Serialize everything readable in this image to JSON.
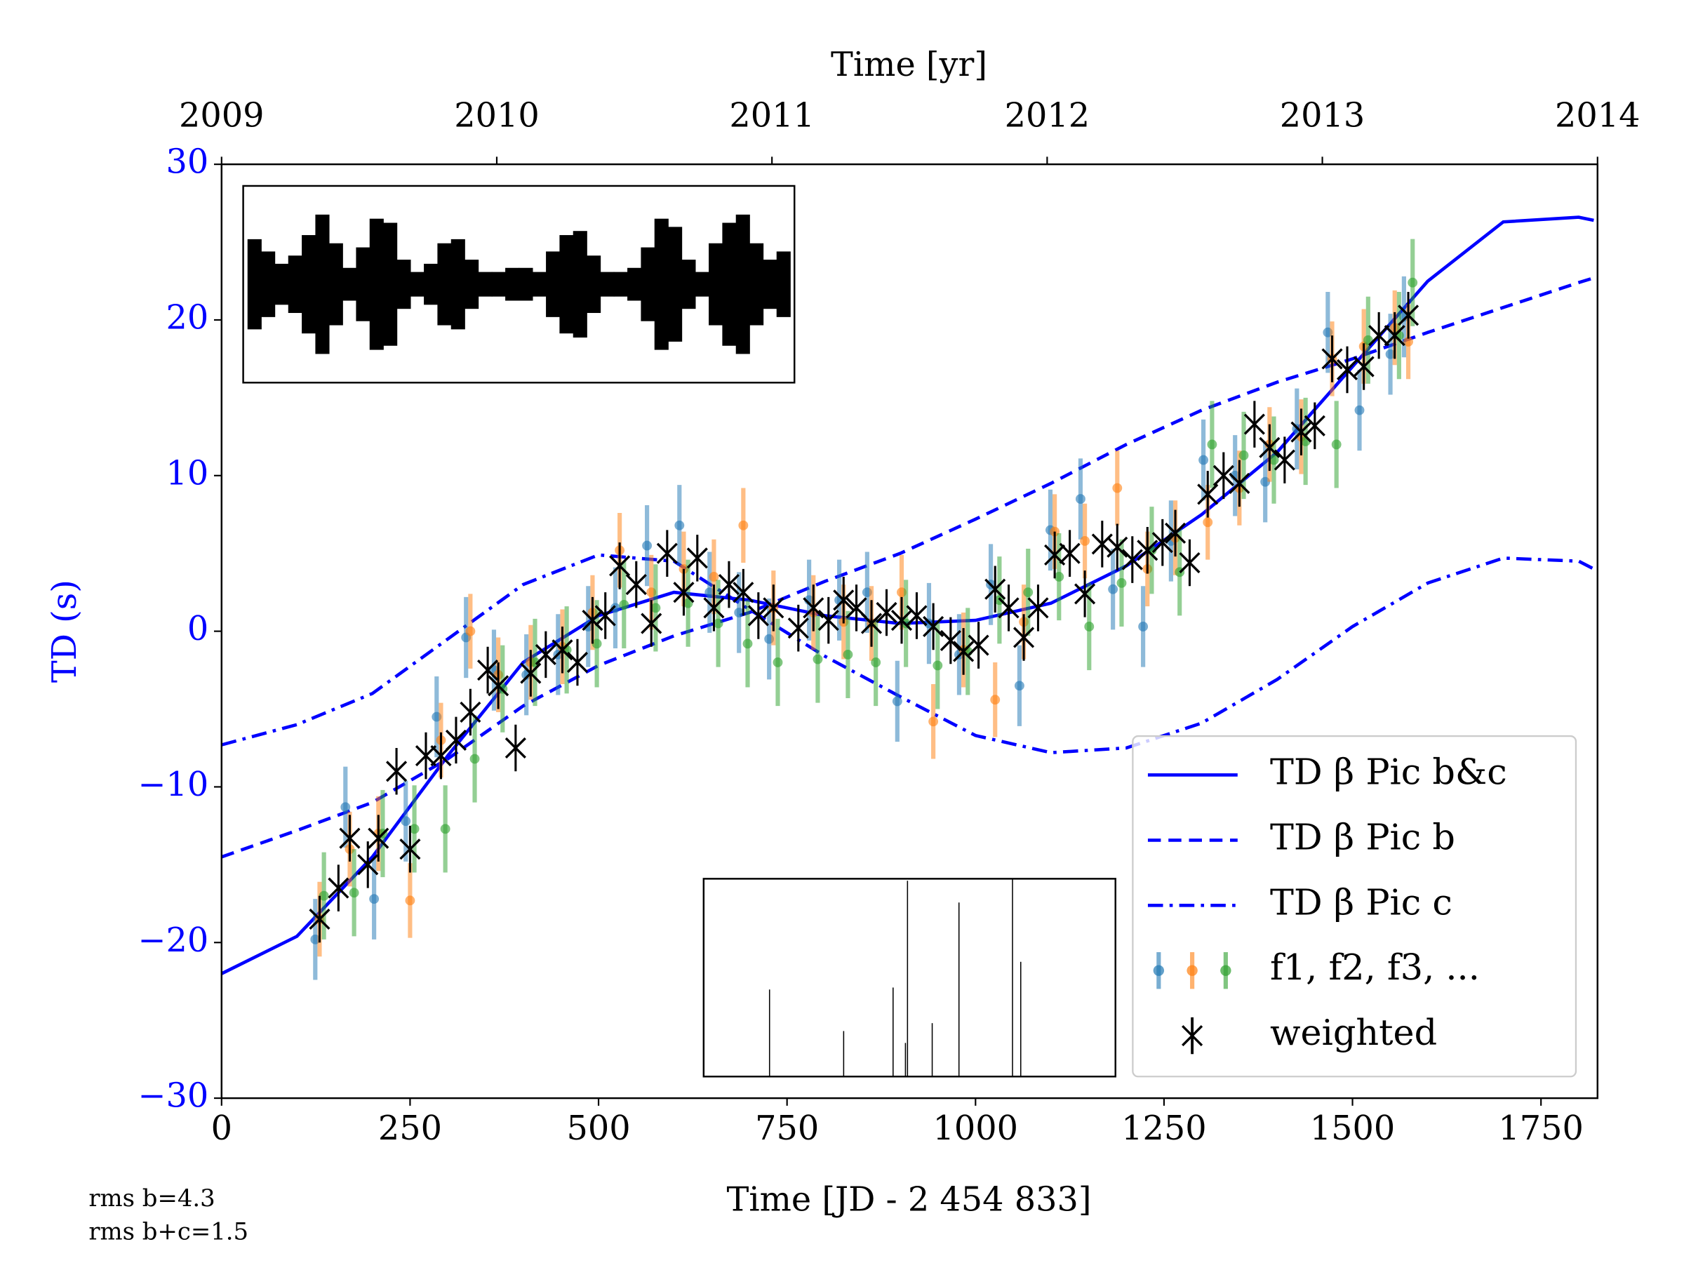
{
  "chart_data": [
    {
      "type": "line",
      "xlabel": "Time [JD - 2 454 833]",
      "ylabel": "TD (s)",
      "x2label": "Time [yr]",
      "xlim": [
        0,
        1825
      ],
      "xticks": [
        0,
        250,
        500,
        750,
        1000,
        1250,
        1500,
        1750
      ],
      "x2lim": [
        2009,
        2014
      ],
      "x2ticks": [
        2009,
        2010,
        2011,
        2012,
        2013,
        2014
      ],
      "ylim": [
        -30,
        30
      ],
      "yticks": [
        {
          "value": -30,
          "label": "−30"
        },
        {
          "value": -20,
          "label": "−20"
        },
        {
          "value": -10,
          "label": "−10"
        },
        0,
        10,
        20,
        30
      ],
      "axis_color": "#0000ff",
      "legend": "lower right",
      "annotations": [
        "rms b=4.3",
        "rms b+c=1.5"
      ],
      "series": [
        {
          "name": "TD β Pic b&c",
          "type": "line",
          "style": "solid",
          "color": "#0000ff",
          "x": [
            0,
            100,
            200,
            300,
            400,
            500,
            600,
            700,
            800,
            900,
            1000,
            1100,
            1200,
            1300,
            1400,
            1500,
            1600,
            1700,
            1800,
            1820
          ],
          "values": [
            -22,
            -19.6,
            -14.5,
            -8,
            -2,
            1,
            2.5,
            2,
            1,
            0.5,
            0.7,
            1.8,
            4.2,
            7.5,
            11.5,
            17,
            22.5,
            26.3,
            26.6,
            26.4
          ]
        },
        {
          "name": "TD β Pic b",
          "type": "line",
          "style": "dashed",
          "color": "#0000ff",
          "x": [
            0,
            100,
            200,
            300,
            400,
            500,
            600,
            700,
            800,
            900,
            1000,
            1100,
            1200,
            1300,
            1400,
            1500,
            1600,
            1700,
            1800,
            1820
          ],
          "values": [
            -14.5,
            -12.8,
            -11,
            -8.2,
            -4.8,
            -2.2,
            -0.3,
            1.2,
            3.2,
            5,
            7.2,
            9.5,
            12,
            14.2,
            16,
            17.5,
            19.2,
            20.8,
            22.4,
            22.7
          ]
        },
        {
          "name": "TD β Pic c",
          "type": "line",
          "style": "dashdot",
          "color": "#0000ff",
          "x": [
            0,
            100,
            200,
            300,
            400,
            500,
            600,
            700,
            800,
            900,
            1000,
            1100,
            1200,
            1300,
            1400,
            1500,
            1600,
            1700,
            1800,
            1820
          ],
          "values": [
            -7.3,
            -6,
            -4,
            -0.5,
            3,
            4.9,
            4.5,
            1.4,
            -1.6,
            -4.2,
            -6.7,
            -7.8,
            -7.5,
            -5.9,
            -3.1,
            0.3,
            3.1,
            4.7,
            4.5,
            4
          ]
        },
        {
          "name": "f1, f2, f3, ...",
          "type": "errorbar",
          "colors": [
            "#1f77b4",
            "#ff7f0e",
            "#2ca02c"
          ],
          "x": [
            130,
            170,
            208,
            250,
            291,
            330,
            367,
            410,
            452,
            492,
            528,
            570,
            613,
            653,
            692,
            732,
            785,
            825,
            862,
            902,
            944,
            984,
            1026,
            1064,
            1105,
            1145,
            1188,
            1228,
            1265,
            1308,
            1350,
            1390,
            1432,
            1473,
            1515,
            1556,
            1574
          ],
          "values": [
            [
              -19.8,
              -11.3,
              -17.2,
              -12.2,
              -5.5,
              -0.4,
              -2.5,
              -2.8,
              -1.5,
              0.3,
              1.5,
              5.5,
              6.8,
              2.5,
              1.2,
              -0.5,
              2,
              2,
              2.5,
              -4.5,
              0.5,
              -1.5,
              3,
              -3.5,
              6.5,
              8.5,
              2.7,
              0.3,
              5.8,
              11,
              10,
              9.6,
              13,
              19.2,
              14.2,
              17.8,
              20.2
            ],
            [
              -18.5,
              -14,
              -13,
              -17.3,
              -7,
              0,
              -2.8,
              -2,
              -1,
              1.2,
              5.2,
              2.5,
              4,
              3.5,
              6.8,
              1.5,
              1.2,
              0.6,
              0.5,
              2.5,
              -5.8,
              -1.2,
              -4.4,
              0.6,
              6.4,
              5.8,
              9.2,
              4,
              6,
              7,
              9.2,
              12,
              12.5,
              17.5,
              18.3,
              19.5,
              18.6
            ],
            [
              -17,
              -16.8,
              -13,
              -12.7,
              -12.7,
              -8.2,
              -3.7,
              -2,
              -1.2,
              -0.8,
              1.7,
              1.5,
              1.8,
              0.5,
              -0.8,
              -2,
              -1.8,
              -1.5,
              -2,
              0.5,
              -2.2,
              -1.3,
              2,
              2.5,
              3.5,
              0.3,
              3.1,
              5.2,
              3.8,
              12,
              11.3,
              11,
              12.2,
              12,
              18.7,
              19,
              22.4
            ]
          ],
          "errors": [
            2.6,
            2.4,
            2.8
          ]
        },
        {
          "name": "weighted",
          "type": "scatter",
          "color": "#000000",
          "error": 1.5,
          "x": [
            130,
            155,
            170,
            194,
            208,
            232,
            250,
            271,
            291,
            311,
            330,
            353,
            367,
            390,
            410,
            430,
            452,
            472,
            492,
            509,
            528,
            550,
            570,
            591,
            613,
            631,
            653,
            673,
            692,
            712,
            732,
            765,
            785,
            805,
            825,
            842,
            862,
            882,
            902,
            922,
            944,
            967,
            984,
            1004,
            1026,
            1044,
            1064,
            1083,
            1105,
            1125,
            1145,
            1168,
            1188,
            1208,
            1228,
            1248,
            1265,
            1284,
            1308,
            1329,
            1350,
            1370,
            1390,
            1410,
            1432,
            1450,
            1473,
            1493,
            1515,
            1535,
            1556,
            1574
          ],
          "values": [
            -18.5,
            -16.5,
            -13.3,
            -15,
            -13.3,
            -9,
            -14,
            -8,
            -8,
            -7,
            -5.2,
            -2.5,
            -3.5,
            -7.5,
            -2.7,
            -1.5,
            -1.2,
            -2,
            0.7,
            1,
            4.2,
            3,
            0.5,
            5,
            2.5,
            4.7,
            1.5,
            3,
            2.5,
            1,
            1.5,
            0.2,
            1.5,
            0.7,
            2,
            1.5,
            0.5,
            1.2,
            0.7,
            1,
            0.3,
            -0.6,
            -1.3,
            -0.9,
            2.7,
            1.5,
            -0.4,
            1.5,
            4.9,
            5,
            2.4,
            5.6,
            5.4,
            4.6,
            5.2,
            5.7,
            6.3,
            4.4,
            8.8,
            10,
            9.5,
            13.3,
            11.8,
            11,
            12.8,
            13.2,
            17.5,
            16.8,
            17,
            19,
            19,
            20.3
          ]
        }
      ]
    },
    {
      "type": "range",
      "color": "#000000",
      "xlim": [
        0,
        40
      ],
      "ylim": [
        -1.2,
        1.2
      ],
      "high": [
        0.55,
        0.4,
        0.25,
        0.35,
        0.6,
        0.85,
        0.5,
        0.2,
        0.45,
        0.8,
        0.75,
        0.3,
        0.15,
        0.25,
        0.5,
        0.55,
        0.3,
        0.15,
        0.15,
        0.2,
        0.2,
        0.15,
        0.4,
        0.6,
        0.65,
        0.35,
        0.15,
        0.15,
        0.2,
        0.45,
        0.8,
        0.7,
        0.3,
        0.15,
        0.5,
        0.75,
        0.85,
        0.5,
        0.3,
        0.4
      ],
      "low": [
        -0.55,
        -0.4,
        -0.25,
        -0.35,
        -0.6,
        -0.85,
        -0.5,
        -0.2,
        -0.45,
        -0.8,
        -0.75,
        -0.3,
        -0.15,
        -0.25,
        -0.5,
        -0.55,
        -0.3,
        -0.15,
        -0.15,
        -0.2,
        -0.2,
        -0.15,
        -0.4,
        -0.6,
        -0.65,
        -0.35,
        -0.15,
        -0.15,
        -0.2,
        -0.45,
        -0.8,
        -0.7,
        -0.3,
        -0.15,
        -0.5,
        -0.75,
        -0.85,
        -0.5,
        -0.3,
        -0.4
      ]
    },
    {
      "type": "spike",
      "color": "#000000",
      "xlim": [
        0,
        1
      ],
      "ylim": [
        0,
        1
      ],
      "x": [
        0.16,
        0.34,
        0.46,
        0.49,
        0.495,
        0.555,
        0.62,
        0.75,
        0.77
      ],
      "values": [
        0.44,
        0.23,
        0.45,
        0.17,
        0.99,
        0.27,
        0.88,
        1.0,
        0.58
      ]
    }
  ]
}
